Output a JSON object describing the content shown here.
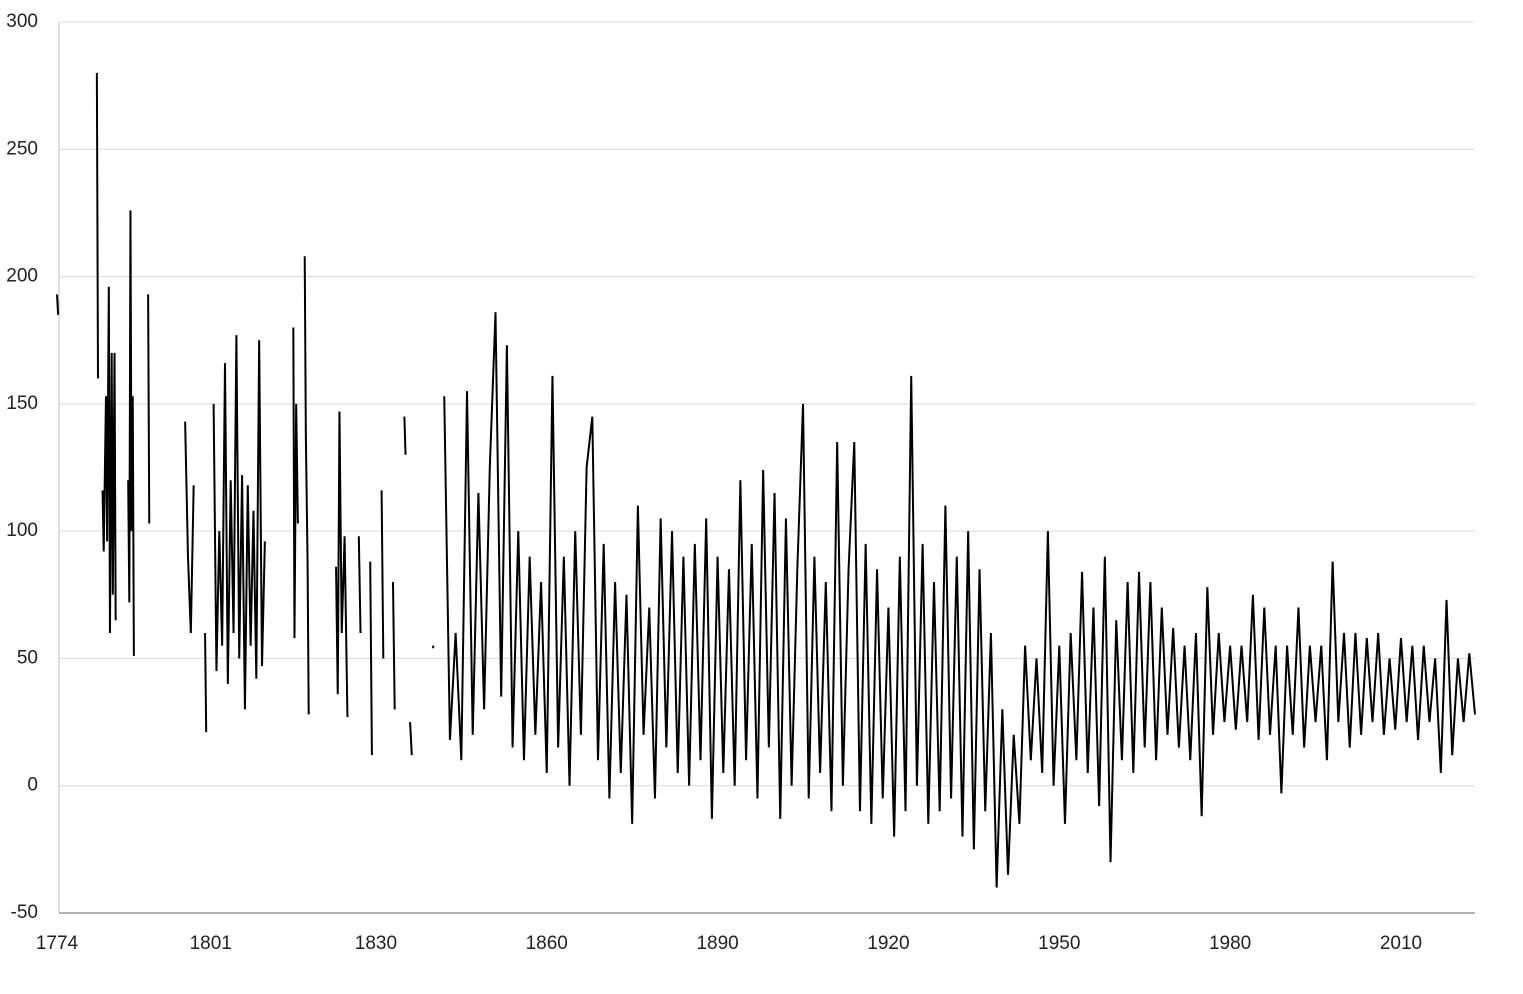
{
  "chart_data": {
    "type": "line",
    "x": [
      1774,
      1774.2,
      1774.5,
      1781,
      1781.2,
      1781.5,
      1782,
      1782.2,
      1782.6,
      1782.8,
      1783.1,
      1783.3,
      1783.6,
      1783.8,
      1784.1,
      1784.3,
      1784.6,
      1786.5,
      1786.7,
      1786.9,
      1787.1,
      1787.3,
      1787.5,
      1788,
      1790,
      1790.2,
      1791,
      1796.5,
      1797,
      1797.5,
      1798,
      1798.5,
      1800,
      1800.2,
      1800.5,
      1801.5,
      1802,
      1802.5,
      1803,
      1803.5,
      1804,
      1804.5,
      1805,
      1805.5,
      1806,
      1806.5,
      1807,
      1807.5,
      1808,
      1808.5,
      1809,
      1809.5,
      1810,
      1810.5,
      1811,
      1815.5,
      1815.7,
      1816,
      1816.3,
      1816.8,
      1817.5,
      1817.7,
      1818,
      1818.2,
      1818.5,
      1823,
      1823.3,
      1823.6,
      1824,
      1824.5,
      1825,
      1826,
      1827,
      1827.3,
      1828,
      1829,
      1829.3,
      1830,
      1831,
      1831.3,
      1832,
      1833,
      1833.3,
      1834,
      1835,
      1835.2,
      1835.6,
      1836,
      1836.3,
      1836.6,
      1840,
      1840.1,
      1840.5,
      1842,
      1843,
      1844,
      1845,
      1846,
      1847,
      1848,
      1849,
      1850,
      1851,
      1852,
      1853,
      1854,
      1855,
      1856,
      1857,
      1858,
      1859,
      1860,
      1861,
      1862,
      1863,
      1864,
      1865,
      1866,
      1867,
      1868,
      1869,
      1870,
      1871,
      1872,
      1873,
      1874,
      1875,
      1876,
      1877,
      1878,
      1879,
      1880,
      1881,
      1882,
      1883,
      1884,
      1885,
      1886,
      1887,
      1888,
      1889,
      1890,
      1891,
      1892,
      1893,
      1894,
      1895,
      1896,
      1897,
      1898,
      1899,
      1900,
      1901,
      1902,
      1903,
      1904,
      1905,
      1906,
      1907,
      1908,
      1909,
      1910,
      1911,
      1912,
      1913,
      1914,
      1915,
      1916,
      1917,
      1918,
      1919,
      1920,
      1921,
      1922,
      1923,
      1924,
      1925,
      1926,
      1927,
      1928,
      1929,
      1930,
      1931,
      1932,
      1933,
      1934,
      1935,
      1936,
      1937,
      1938,
      1939,
      1940,
      1941,
      1942,
      1943,
      1944,
      1945,
      1946,
      1947,
      1948,
      1949,
      1950,
      1951,
      1952,
      1953,
      1954,
      1955,
      1956,
      1957,
      1958,
      1959,
      1960,
      1961,
      1962,
      1963,
      1964,
      1965,
      1966,
      1967,
      1968,
      1969,
      1970,
      1971,
      1972,
      1973,
      1974,
      1975,
      1976,
      1977,
      1978,
      1979,
      1980,
      1981,
      1982,
      1983,
      1984,
      1985,
      1986,
      1987,
      1988,
      1989,
      1990,
      1991,
      1992,
      1993,
      1994,
      1995,
      1996,
      1997,
      1998,
      1999,
      2000,
      2001,
      2002,
      2003,
      2004,
      2005,
      2006,
      2007,
      2008,
      2009,
      2010,
      2011,
      2012,
      2013,
      2014,
      2015,
      2016,
      2017,
      2018,
      2019,
      2020,
      2021,
      2022,
      2023
    ],
    "series": [
      {
        "color": "#000000",
        "values": [
          193,
          185,
          null,
          280,
          160,
          null,
          116,
          92,
          153,
          96,
          196,
          60,
          170,
          75,
          170,
          65,
          null,
          120,
          72,
          226,
          100,
          153,
          51,
          null,
          193,
          103,
          null,
          143,
          90,
          60,
          118,
          null,
          60,
          21,
          null,
          150,
          45,
          100,
          55,
          166,
          40,
          120,
          60,
          177,
          50,
          122,
          30,
          118,
          55,
          108,
          42,
          175,
          47,
          96,
          null,
          180,
          58,
          150,
          103,
          null,
          208,
          137,
          88,
          28,
          null,
          86,
          36,
          147,
          60,
          98,
          27,
          null,
          98,
          60,
          null,
          88,
          12,
          null,
          116,
          50,
          null,
          80,
          30,
          null,
          145,
          130,
          null,
          25,
          12,
          null,
          55,
          54,
          null,
          153,
          18,
          60,
          10,
          155,
          20,
          115,
          30,
          125,
          186,
          35,
          173,
          15,
          100,
          10,
          90,
          20,
          80,
          5,
          161,
          15,
          90,
          0,
          100,
          20,
          125,
          145,
          10,
          95,
          -5,
          80,
          5,
          75,
          -15,
          110,
          20,
          70,
          -5,
          105,
          15,
          100,
          5,
          90,
          0,
          95,
          10,
          105,
          -13,
          90,
          5,
          85,
          0,
          120,
          10,
          95,
          -5,
          124,
          15,
          115,
          -13,
          105,
          0,
          85,
          150,
          -5,
          90,
          5,
          80,
          -10,
          135,
          0,
          85,
          135,
          -10,
          95,
          -15,
          85,
          -5,
          70,
          -20,
          90,
          -10,
          161,
          0,
          95,
          -15,
          80,
          -10,
          110,
          -5,
          90,
          -20,
          100,
          -25,
          85,
          -10,
          60,
          -40,
          30,
          -35,
          20,
          -15,
          55,
          10,
          50,
          5,
          100,
          0,
          55,
          -15,
          60,
          10,
          84,
          5,
          70,
          -8,
          90,
          -30,
          65,
          10,
          80,
          5,
          84,
          15,
          80,
          10,
          70,
          20,
          62,
          15,
          55,
          10,
          60,
          -12,
          78,
          20,
          60,
          25,
          55,
          22,
          55,
          25,
          75,
          18,
          70,
          20,
          55,
          -3,
          55,
          20,
          70,
          15,
          55,
          25,
          55,
          10,
          88,
          25,
          60,
          15,
          60,
          20,
          58,
          25,
          60,
          20,
          50,
          22,
          58,
          25,
          55,
          18,
          55,
          25,
          50,
          5,
          73,
          12,
          50,
          25,
          52,
          28
        ]
      }
    ],
    "xlim": [
      1774,
      2023
    ],
    "xticks": [
      1774,
      1801,
      1830,
      1860,
      1890,
      1920,
      1950,
      1980,
      2010
    ],
    "ylim": [
      -50,
      300
    ],
    "yticks": [
      -50,
      0,
      50,
      100,
      150,
      200,
      250,
      300
    ],
    "grid": true
  }
}
